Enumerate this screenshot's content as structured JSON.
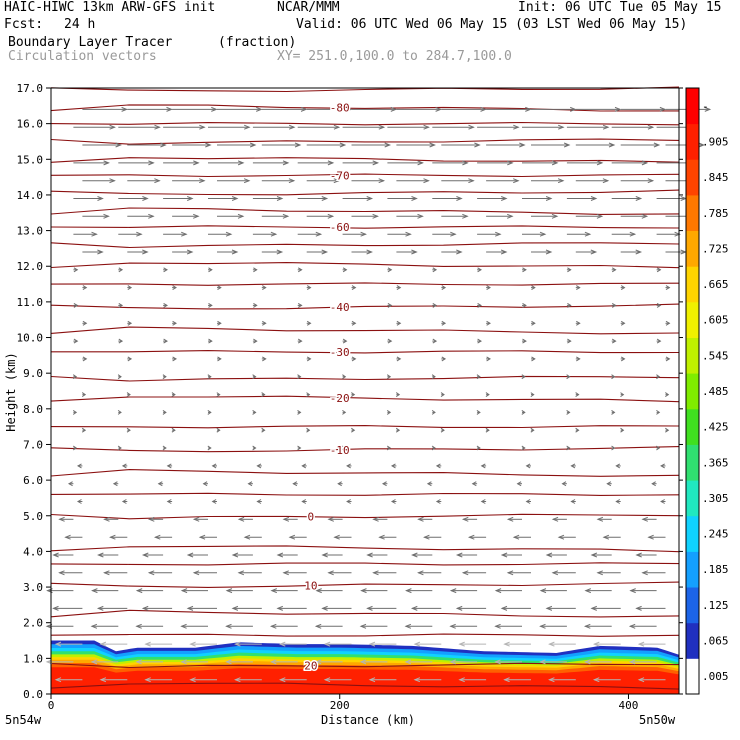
{
  "header": {
    "model": "HAIC-HIWC 13km ARW-GFS init",
    "org": "NCAR/MMM",
    "init": "Init: 06 UTC Tue 05 May 15",
    "fcst_label": "Fcst:",
    "fcst_value": "24 h",
    "valid": "Valid: 06 UTC Wed 06 May 15 (03 LST Wed 06 May 15)",
    "field": "Boundary Layer Tracer",
    "field_units": "(fraction)",
    "overlay": "Circulation vectors",
    "xy": "XY= 251.0,100.0 to 284.7,100.0"
  },
  "chart_data": {
    "type": "heatmap",
    "title": "Boundary Layer Tracer",
    "units": "(fraction)",
    "xlabel": "Distance (km)",
    "ylabel": "Height (km)",
    "xlim": [
      0,
      435
    ],
    "ylim": [
      0,
      17
    ],
    "x_ticks": [
      {
        "value": 0,
        "label": "0"
      },
      {
        "value": 200,
        "label": "200"
      },
      {
        "value": 400,
        "label": "400"
      }
    ],
    "x_end_labels": {
      "left": "5n54w",
      "right": "5n50w"
    },
    "y_ticks": [
      {
        "value": 0,
        "label": "0.0"
      },
      {
        "value": 1,
        "label": "1.0"
      },
      {
        "value": 2,
        "label": "2.0"
      },
      {
        "value": 3,
        "label": "3.0"
      },
      {
        "value": 4,
        "label": "4.0"
      },
      {
        "value": 5,
        "label": "5.0"
      },
      {
        "value": 6,
        "label": "6.0"
      },
      {
        "value": 7,
        "label": "7.0"
      },
      {
        "value": 8,
        "label": "8.0"
      },
      {
        "value": 9,
        "label": "9.0"
      },
      {
        "value": 10,
        "label": "10.0"
      },
      {
        "value": 11,
        "label": "11.0"
      },
      {
        "value": 12,
        "label": "12.0"
      },
      {
        "value": 13,
        "label": "13.0"
      },
      {
        "value": 14,
        "label": "14.0"
      },
      {
        "value": 15,
        "label": "15.0"
      },
      {
        "value": 16,
        "label": "16.0"
      },
      {
        "value": 17,
        "label": "17.0"
      }
    ],
    "colorbar": {
      "labels": [
        ".005",
        ".065",
        ".125",
        ".185",
        ".245",
        ".305",
        ".365",
        ".425",
        ".485",
        ".545",
        ".605",
        ".665",
        ".725",
        ".785",
        ".845",
        ".905",
        "-"
      ],
      "colors": [
        "#ffffff",
        "#2030c0",
        "#1c64e8",
        "#14a0ff",
        "#10d2ff",
        "#20e8c0",
        "#30e070",
        "#40e020",
        "#80ec00",
        "#c0f000",
        "#f0f000",
        "#ffd400",
        "#ffa800",
        "#ff7800",
        "#ff4400",
        "#ff2000",
        "#ff0000"
      ]
    },
    "tracer_top_km": [
      {
        "x": 0,
        "top": 1.5
      },
      {
        "x": 30,
        "top": 1.5
      },
      {
        "x": 45,
        "top": 1.2
      },
      {
        "x": 60,
        "top": 1.3
      },
      {
        "x": 100,
        "top": 1.3
      },
      {
        "x": 130,
        "top": 1.45
      },
      {
        "x": 170,
        "top": 1.4
      },
      {
        "x": 200,
        "top": 1.4
      },
      {
        "x": 250,
        "top": 1.35
      },
      {
        "x": 300,
        "top": 1.2
      },
      {
        "x": 350,
        "top": 1.15
      },
      {
        "x": 380,
        "top": 1.35
      },
      {
        "x": 420,
        "top": 1.3
      },
      {
        "x": 435,
        "top": 1.1
      }
    ],
    "contour_labels": [
      {
        "label": "-80",
        "x": 200,
        "y": 16.45
      },
      {
        "label": "-70",
        "x": 200,
        "y": 14.55
      },
      {
        "label": "-60",
        "x": 200,
        "y": 13.1
      },
      {
        "label": "-40",
        "x": 200,
        "y": 10.85
      },
      {
        "label": "-30",
        "x": 200,
        "y": 9.6
      },
      {
        "label": "-20",
        "x": 200,
        "y": 8.3
      },
      {
        "label": "-10",
        "x": 200,
        "y": 6.85
      },
      {
        "label": "0",
        "x": 180,
        "y": 4.98
      },
      {
        "label": "10",
        "x": 180,
        "y": 3.05
      },
      {
        "label": "20",
        "x": 180,
        "y": 0.8
      }
    ],
    "contour_heights_km": [
      0.25,
      0.8,
      1.65,
      2.25,
      3.05,
      3.65,
      4.1,
      4.98,
      5.6,
      6.2,
      6.85,
      7.5,
      8.3,
      8.85,
      9.6,
      10.2,
      10.85,
      11.5,
      12.05,
      12.6,
      13.1,
      13.55,
      14.05,
      14.55,
      15.0,
      15.5,
      16.0,
      16.45,
      16.95
    ]
  }
}
